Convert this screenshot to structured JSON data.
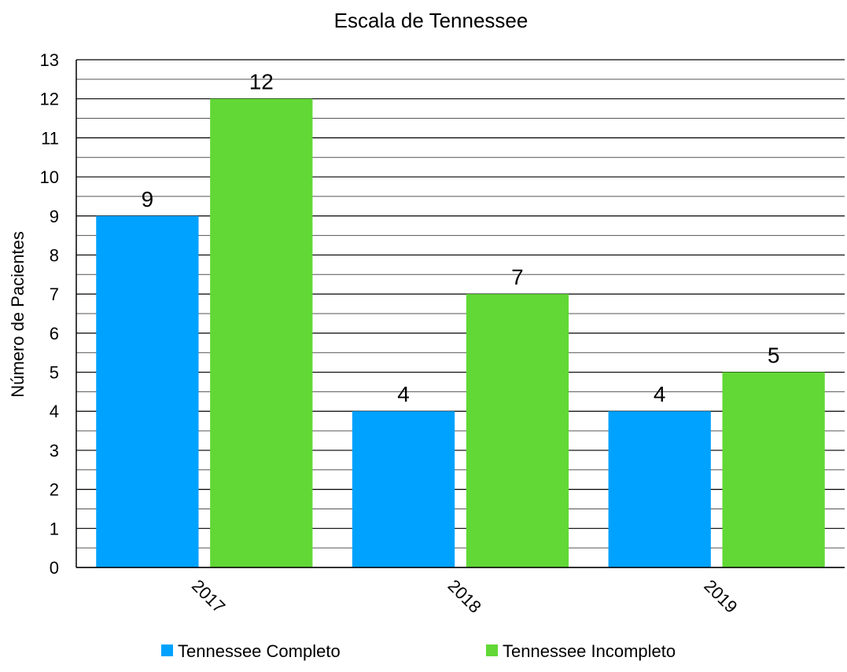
{
  "chart_data": {
    "type": "bar",
    "title": "Escala de Tennessee",
    "xlabel": "",
    "ylabel": "Número de Pacientes",
    "categories": [
      "2017",
      "2018",
      "2019"
    ],
    "series": [
      {
        "name": "Tennessee Completo",
        "values": [
          9,
          4,
          4
        ],
        "color": "#00A2FF"
      },
      {
        "name": "Tennessee Incompleto",
        "values": [
          12,
          7,
          5
        ],
        "color": "#61D836"
      }
    ],
    "ylim": [
      0,
      13
    ],
    "yticks": [
      0,
      1,
      2,
      3,
      4,
      5,
      6,
      7,
      8,
      9,
      10,
      11,
      12,
      13
    ],
    "grid": true,
    "legend_position": "bottom"
  }
}
